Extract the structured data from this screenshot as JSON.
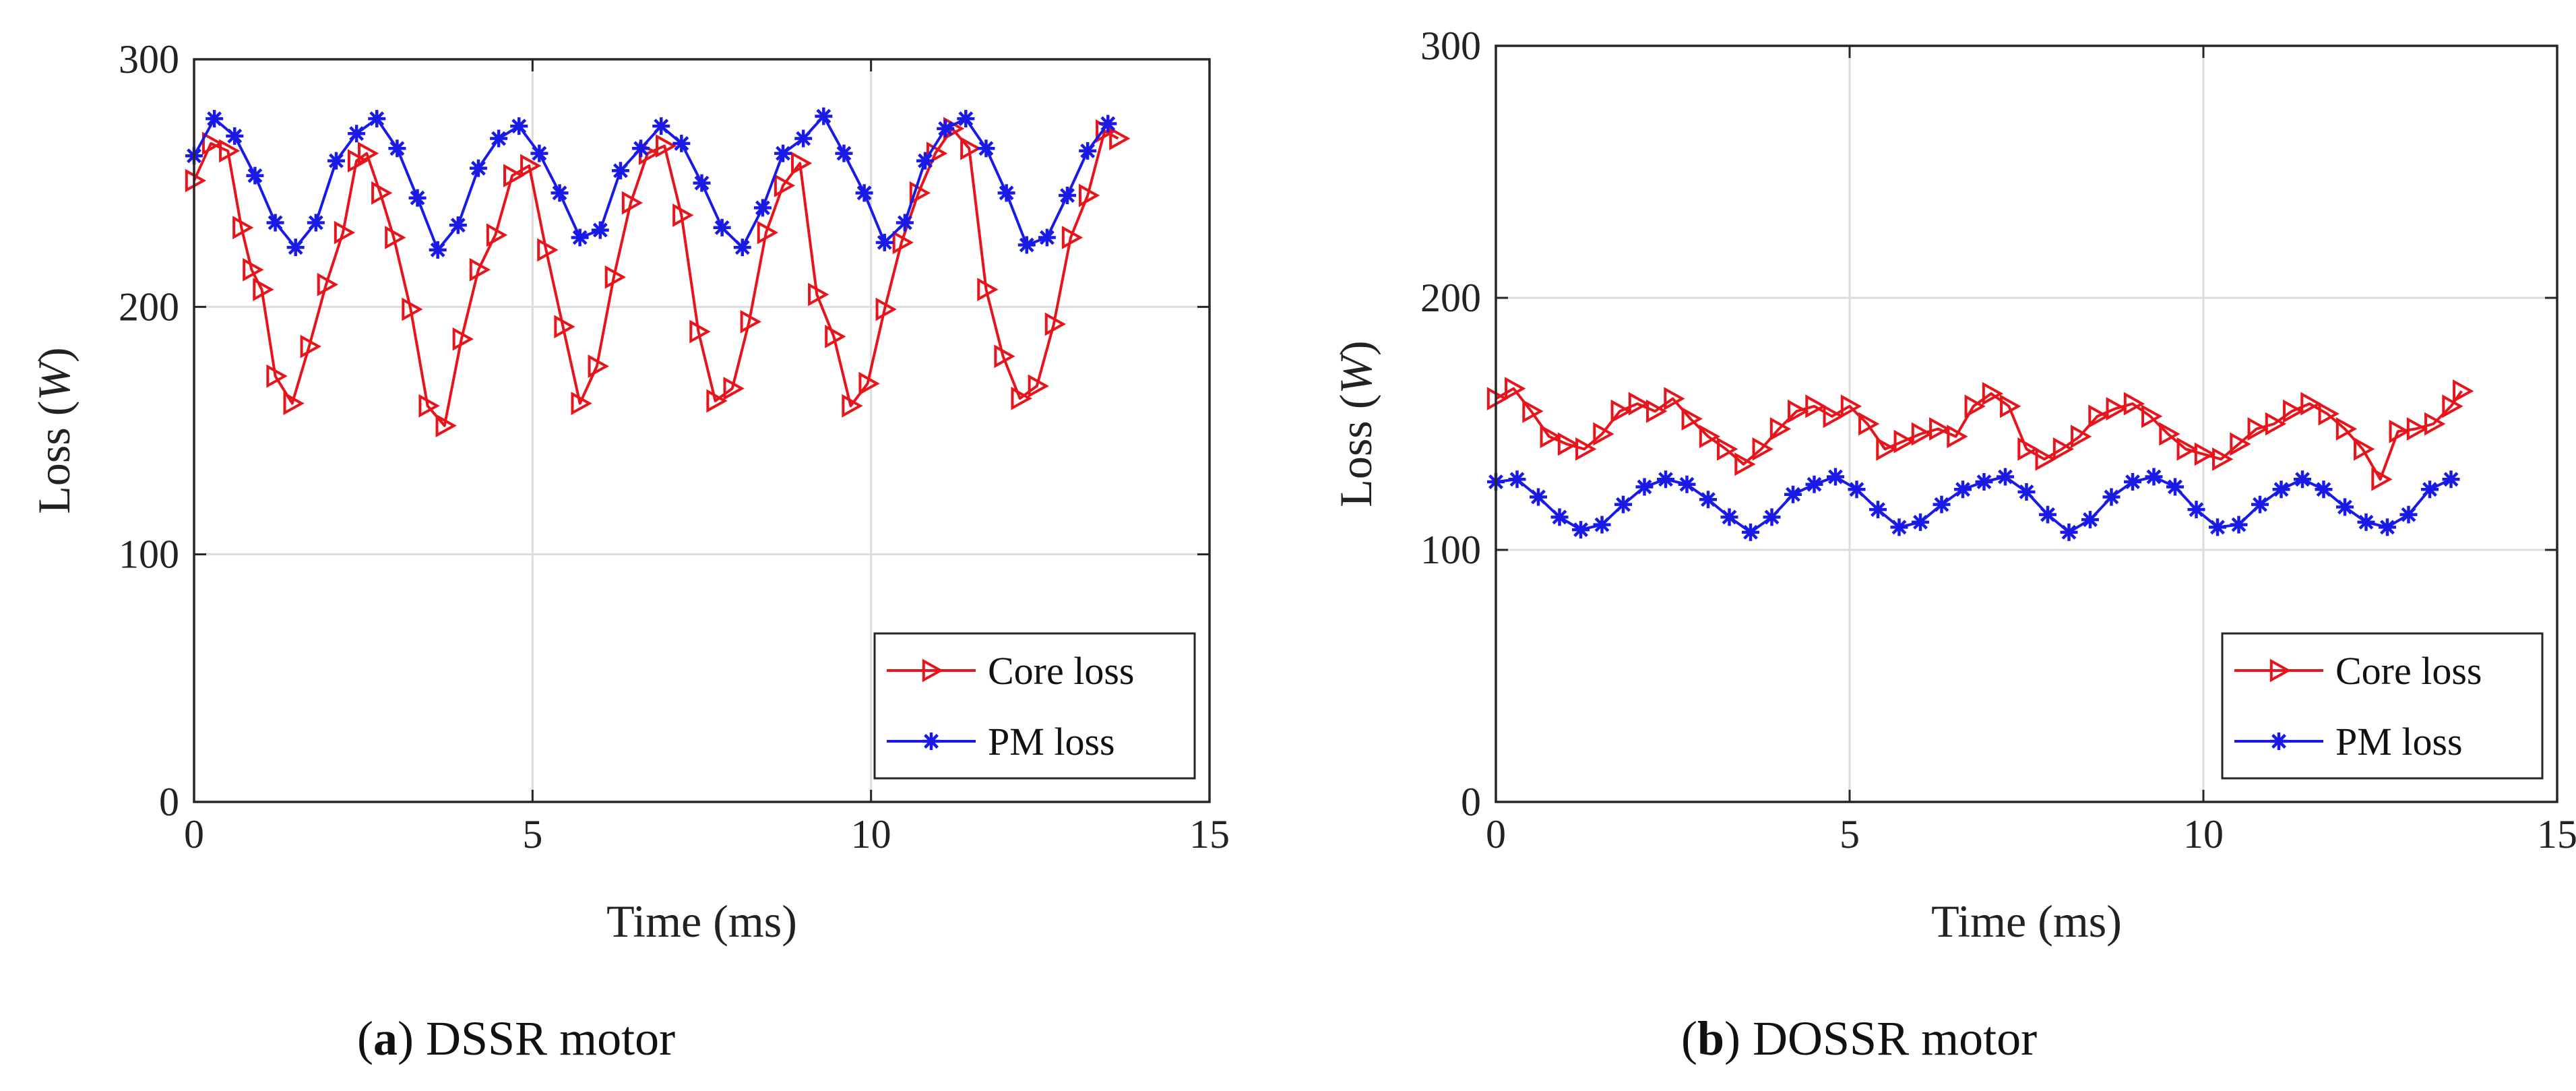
{
  "chart_data": [
    {
      "type": "line",
      "panel_label": "a",
      "caption": "DSSR motor",
      "xlabel": "Time (ms)",
      "ylabel_prefix": "Loss (",
      "ylabel_unit": "W",
      "ylabel_suffix": ")",
      "xlim": [
        0,
        15
      ],
      "ylim": [
        0,
        300
      ],
      "xticks": [
        0,
        5,
        10,
        15
      ],
      "yticks": [
        0,
        100,
        200,
        300
      ],
      "grid": true,
      "legend_position": "bottom-right",
      "series": [
        {
          "name": "Core loss",
          "color": "#e8141b",
          "marker": "triangle-right",
          "x": [
            0,
            0.25,
            0.5,
            0.7,
            0.85,
            1.0,
            1.2,
            1.45,
            1.7,
            1.95,
            2.2,
            2.4,
            2.55,
            2.75,
            2.95,
            3.2,
            3.45,
            3.7,
            3.95,
            4.2,
            4.45,
            4.7,
            4.95,
            5.2,
            5.45,
            5.7,
            5.95,
            6.2,
            6.45,
            6.7,
            6.95,
            7.2,
            7.45,
            7.7,
            7.95,
            8.2,
            8.45,
            8.7,
            8.95,
            9.2,
            9.45,
            9.7,
            9.95,
            10.2,
            10.45,
            10.7,
            10.95,
            11.2,
            11.45,
            11.7,
            11.95,
            12.2,
            12.45,
            12.7,
            12.95,
            13.2,
            13.45,
            13.65
          ],
          "y": [
            251,
            266,
            263,
            232,
            215,
            207,
            172,
            161,
            184,
            209,
            230,
            259,
            262,
            246,
            228,
            199,
            160,
            152,
            187,
            215,
            229,
            253,
            257,
            223,
            192,
            161,
            176,
            212,
            242,
            262,
            265,
            237,
            190,
            162,
            167,
            194,
            230,
            249,
            258,
            205,
            188,
            160,
            169,
            199,
            226,
            246,
            262,
            272,
            264,
            207,
            180,
            163,
            168,
            193,
            228,
            245,
            271,
            268
          ]
        },
        {
          "name": "PM loss",
          "color": "#1a1ae6",
          "marker": "asterisk",
          "x": [
            0,
            0.3,
            0.6,
            0.9,
            1.2,
            1.5,
            1.8,
            2.1,
            2.4,
            2.7,
            3.0,
            3.3,
            3.6,
            3.9,
            4.2,
            4.5,
            4.8,
            5.1,
            5.4,
            5.7,
            6.0,
            6.3,
            6.6,
            6.9,
            7.2,
            7.5,
            7.8,
            8.1,
            8.4,
            8.7,
            9.0,
            9.3,
            9.6,
            9.9,
            10.2,
            10.5,
            10.8,
            11.1,
            11.4,
            11.7,
            12.0,
            12.3,
            12.6,
            12.9,
            13.2,
            13.5
          ],
          "y": [
            261,
            276,
            269,
            253,
            234,
            224,
            234,
            259,
            270,
            276,
            264,
            244,
            223,
            233,
            256,
            268,
            273,
            262,
            246,
            228,
            231,
            255,
            264,
            273,
            266,
            250,
            232,
            224,
            240,
            262,
            268,
            277,
            262,
            246,
            226,
            234,
            259,
            272,
            276,
            264,
            246,
            225,
            228,
            245,
            263,
            274
          ]
        }
      ]
    },
    {
      "type": "line",
      "panel_label": "b",
      "caption": "DOSSR motor",
      "xlabel": "Time (ms)",
      "ylabel_prefix": "Loss (",
      "ylabel_unit": "W",
      "ylabel_suffix": ")",
      "xlim": [
        0,
        15
      ],
      "ylim": [
        0,
        300
      ],
      "xticks": [
        0,
        5,
        10,
        15
      ],
      "yticks": [
        0,
        100,
        200,
        300
      ],
      "grid": true,
      "legend_position": "bottom-right",
      "series": [
        {
          "name": "Core loss",
          "color": "#e8141b",
          "marker": "triangle-right",
          "x": [
            0,
            0.25,
            0.5,
            0.75,
            1.0,
            1.25,
            1.5,
            1.75,
            2.0,
            2.25,
            2.5,
            2.75,
            3.0,
            3.25,
            3.5,
            3.75,
            4.0,
            4.25,
            4.5,
            4.75,
            5.0,
            5.25,
            5.5,
            5.75,
            6.0,
            6.25,
            6.5,
            6.75,
            7.0,
            7.25,
            7.5,
            7.75,
            8.0,
            8.25,
            8.5,
            8.75,
            9.0,
            9.25,
            9.5,
            9.75,
            10.0,
            10.25,
            10.5,
            10.75,
            11.0,
            11.25,
            11.5,
            11.75,
            12.0,
            12.25,
            12.5,
            12.75,
            13.0,
            13.25,
            13.5,
            13.65
          ],
          "y": [
            160,
            164,
            155,
            145,
            142,
            140,
            146,
            155,
            158,
            155,
            160,
            152,
            145,
            140,
            134,
            140,
            148,
            155,
            157,
            153,
            157,
            150,
            140,
            143,
            146,
            148,
            145,
            157,
            162,
            157,
            140,
            136,
            140,
            145,
            153,
            156,
            158,
            153,
            146,
            140,
            138,
            136,
            142,
            148,
            150,
            155,
            158,
            154,
            148,
            140,
            128,
            147,
            148,
            150,
            157,
            163
          ]
        },
        {
          "name": "PM loss",
          "color": "#1a1ae6",
          "marker": "asterisk",
          "x": [
            0,
            0.3,
            0.6,
            0.9,
            1.2,
            1.5,
            1.8,
            2.1,
            2.4,
            2.7,
            3.0,
            3.3,
            3.6,
            3.9,
            4.2,
            4.5,
            4.8,
            5.1,
            5.4,
            5.7,
            6.0,
            6.3,
            6.6,
            6.9,
            7.2,
            7.5,
            7.8,
            8.1,
            8.4,
            8.7,
            9.0,
            9.3,
            9.6,
            9.9,
            10.2,
            10.5,
            10.8,
            11.1,
            11.4,
            11.7,
            12.0,
            12.3,
            12.6,
            12.9,
            13.2,
            13.5
          ],
          "y": [
            127,
            128,
            121,
            113,
            108,
            110,
            118,
            125,
            128,
            126,
            120,
            113,
            107,
            113,
            122,
            126,
            129,
            124,
            116,
            109,
            111,
            118,
            124,
            127,
            129,
            123,
            114,
            107,
            112,
            121,
            127,
            129,
            125,
            116,
            109,
            110,
            118,
            124,
            128,
            124,
            117,
            111,
            109,
            114,
            124,
            128
          ]
        }
      ]
    }
  ]
}
